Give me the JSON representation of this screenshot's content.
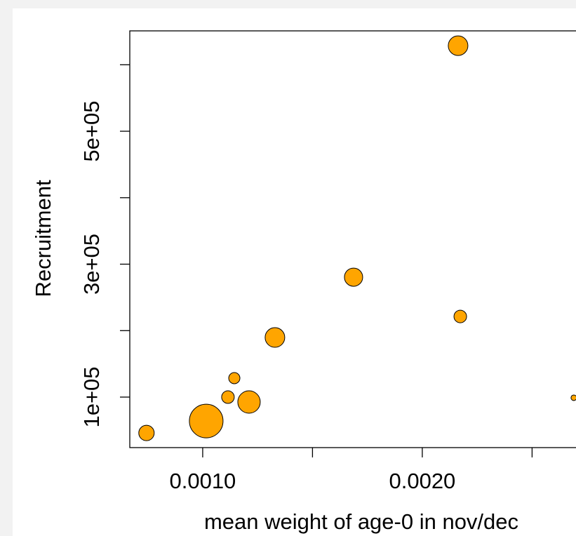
{
  "chart_data": {
    "type": "scatter",
    "x_label": "mean weight of age-0 in nov/dec",
    "y_label": "Recruitment",
    "color": "#ffa500",
    "x": [
      0.000744,
      0.001016,
      0.001115,
      0.001144,
      0.001211,
      0.001329,
      0.001687,
      0.002163,
      0.002173,
      0.00269
    ],
    "values": [
      46000,
      64000,
      100000,
      128500,
      92600,
      189700,
      280400,
      628700,
      221300,
      99000
    ],
    "sizes": [
      1.1,
      2.4,
      0.9,
      0.8,
      1.6,
      1.4,
      1.3,
      1.4,
      0.9,
      0.4
    ],
    "xlim": [
      0.000668,
      0.0027
    ],
    "ylim": [
      24000,
      651000
    ],
    "xticks": [
      {
        "value": 0.001,
        "label": "0.0010"
      },
      {
        "value": 0.0015,
        "label": null
      },
      {
        "value": 0.002,
        "label": "0.0020"
      },
      {
        "value": 0.0025,
        "label": null
      }
    ],
    "yticks": [
      {
        "value": 100000,
        "label": "1e+05"
      },
      {
        "value": 200000,
        "label": null
      },
      {
        "value": 300000,
        "label": "3e+05"
      },
      {
        "value": 400000,
        "label": null
      },
      {
        "value": 500000,
        "label": "5e+05"
      },
      {
        "value": 600000,
        "label": null
      }
    ]
  }
}
